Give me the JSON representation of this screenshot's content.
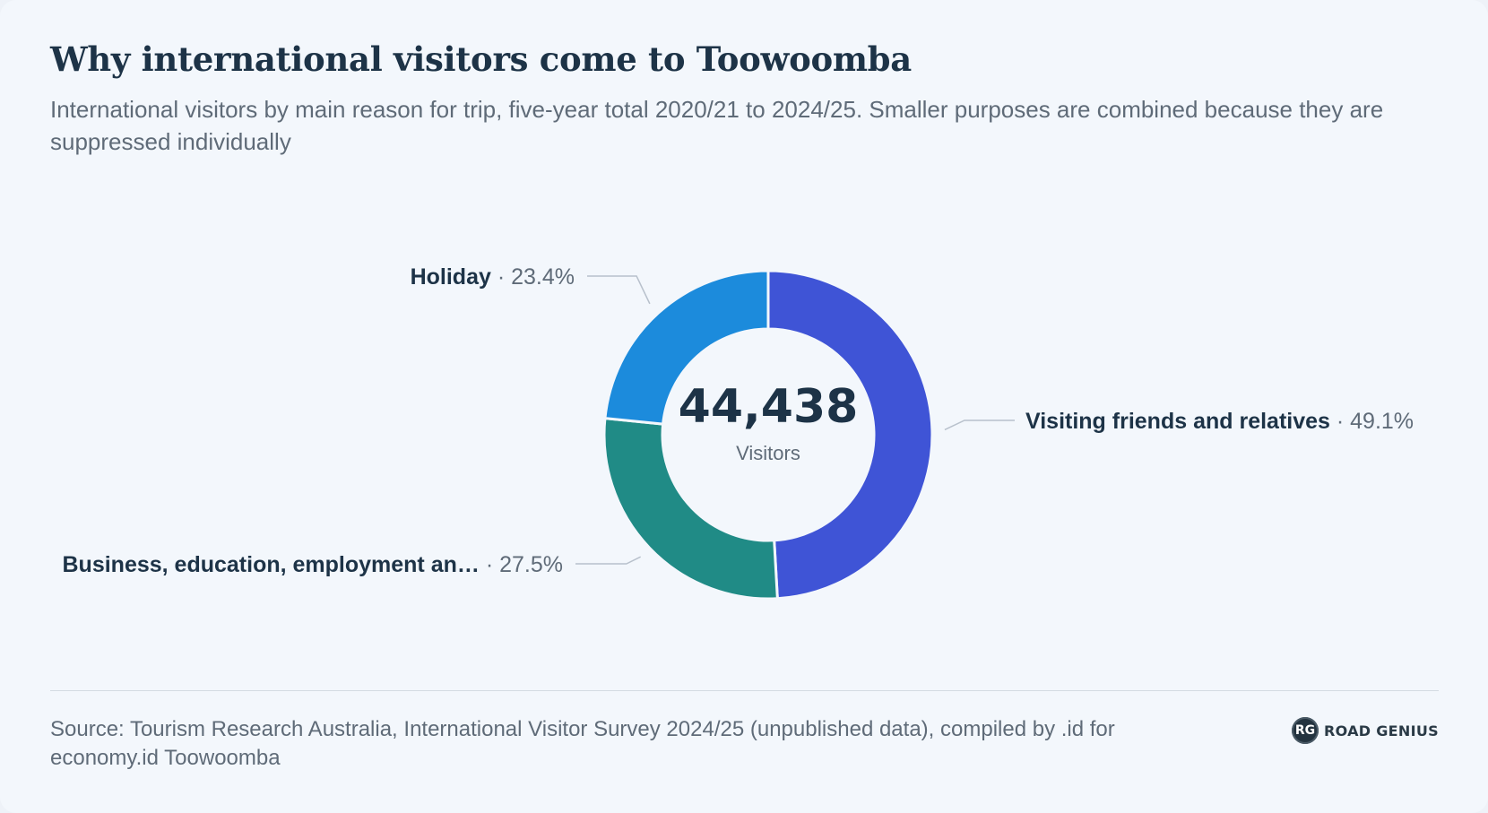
{
  "header": {
    "title": "Why international visitors come to Toowoomba",
    "subtitle": "International visitors by main reason for trip, five-year total 2020/21 to 2024/25. Smaller purposes are combined because they are suppressed individually"
  },
  "chart_data": {
    "type": "pie",
    "variant": "donut",
    "title": "Why international visitors come to Toowoomba",
    "center_total": "44,438",
    "center_label": "Visitors",
    "slices": [
      {
        "label": "Visiting friends and relatives",
        "display_label": "Visiting friends and relatives",
        "percent": 49.1,
        "percent_label": "49.1%",
        "color": "#3f54d6"
      },
      {
        "label": "Business, education, employment an…",
        "display_label": "Business, education, employment an…",
        "percent": 27.5,
        "percent_label": "27.5%",
        "color": "#208b86"
      },
      {
        "label": "Holiday",
        "display_label": "Holiday",
        "percent": 23.4,
        "percent_label": "23.4%",
        "color": "#1c8bdc"
      }
    ]
  },
  "footer": {
    "source": "Source: Tourism Research Australia, International Visitor Survey 2024/25 (unpublished data), compiled by .id for economy.id Toowoomba",
    "brand_mark": "RG",
    "brand_name": "ROAD GENIUS"
  },
  "colors": {
    "background": "#f3f7fc",
    "title": "#1d3347",
    "muted_text": "#5f6b78"
  }
}
